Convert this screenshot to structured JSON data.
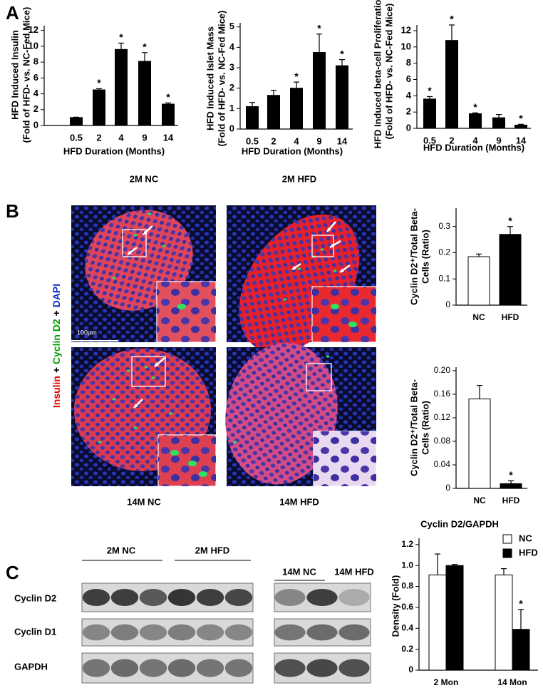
{
  "chart_data": [
    {
      "type": "bar",
      "y_label": [
        "HFD Induced Insulin",
        "(Fold of HFD- vs. NC-Fed Mice)"
      ],
      "x_label": "HFD Duration (Months)",
      "categories": [
        "0.5",
        "2",
        "4",
        "9",
        "14"
      ],
      "series": [
        {
          "color": "#000000",
          "values": [
            1.0,
            4.5,
            9.6,
            8.1,
            2.7
          ],
          "errors": [
            0.05,
            0.15,
            0.8,
            1.1,
            0.15
          ]
        }
      ],
      "ylim": [
        0,
        12.6
      ],
      "yticks": [
        0,
        2,
        4,
        6,
        8,
        10,
        12
      ],
      "annotations": [
        {
          "category": "2",
          "text": "*"
        },
        {
          "category": "4",
          "text": "*"
        },
        {
          "category": "9",
          "text": "*"
        },
        {
          "category": "14",
          "text": "*"
        }
      ]
    },
    {
      "type": "bar",
      "y_label": [
        "HFD Induced Islet Mass",
        "(Fold of HFD- vs. NC-Fed Mice)"
      ],
      "x_label": "HFD Duration (Months)",
      "categories": [
        "0.5",
        "2",
        "4",
        "9",
        "14"
      ],
      "series": [
        {
          "color": "#000000",
          "values": [
            1.1,
            1.65,
            2.0,
            3.75,
            3.1
          ],
          "errors": [
            0.2,
            0.25,
            0.3,
            0.9,
            0.3
          ]
        }
      ],
      "ylim": [
        0,
        5.2
      ],
      "yticks": [
        0,
        1,
        2,
        3,
        4,
        5
      ],
      "annotations": [
        {
          "category": "4",
          "text": "*"
        },
        {
          "category": "9",
          "text": "*"
        },
        {
          "category": "14",
          "text": "*"
        }
      ]
    },
    {
      "type": "bar",
      "y_label": [
        "HFD Induced beta-cell Proliferation",
        "(Fold of HFD- vs. NC-Fed Mice)"
      ],
      "x_label": "HFD Duration (Months)",
      "categories": [
        "0.5",
        "2",
        "4",
        "9",
        "14"
      ],
      "series": [
        {
          "color": "#000000",
          "values": [
            3.6,
            10.8,
            1.8,
            1.3,
            0.4
          ],
          "errors": [
            0.3,
            1.9,
            0.1,
            0.4,
            0.1
          ]
        }
      ],
      "ylim": [
        0,
        12.7
      ],
      "yticks": [
        0,
        2,
        4,
        6,
        8,
        10,
        12
      ],
      "annotations": [
        {
          "category": "0.5",
          "text": "*"
        },
        {
          "category": "2",
          "text": "*"
        },
        {
          "category": "4",
          "text": "*"
        },
        {
          "category": "14",
          "text": "*"
        }
      ]
    },
    {
      "type": "bar",
      "y_label": [
        "Cyclin D2⁺/Total Beta-",
        "Cells (Ratio)"
      ],
      "categories": [
        "NC",
        "HFD"
      ],
      "series": [
        {
          "colors": [
            "#ffffff",
            "#000000"
          ],
          "values": [
            0.185,
            0.27
          ],
          "errors": [
            0.01,
            0.03
          ]
        }
      ],
      "ylim": [
        0,
        0.37
      ],
      "yticks": [
        0,
        0.1,
        0.2,
        0.3
      ],
      "annotations": [
        {
          "category": "HFD",
          "text": "*"
        }
      ]
    },
    {
      "type": "bar",
      "y_label": [
        "Cyclin D2⁺/Total Beta-",
        "Cells (Ratio)"
      ],
      "categories": [
        "NC",
        "HFD"
      ],
      "series": [
        {
          "colors": [
            "#ffffff",
            "#000000"
          ],
          "values": [
            0.152,
            0.008
          ],
          "errors": [
            0.023,
            0.005
          ]
        }
      ],
      "ylim": [
        0,
        0.206
      ],
      "yticks": [
        0,
        0.04,
        0.08,
        0.12,
        0.16,
        {
          "value": 0.2,
          "label": "0.20"
        }
      ],
      "annotations": [
        {
          "category": "HFD",
          "text": "*"
        }
      ]
    },
    {
      "type": "bar",
      "title": "Cyclin D2/GAPDH",
      "y_label": [
        "Density (Fold)"
      ],
      "categories": [
        "2 Mon",
        "14 Mon"
      ],
      "series": [
        {
          "name": "NC",
          "color": "#ffffff",
          "values": [
            0.91,
            0.91
          ],
          "errors": [
            0.2,
            0.06
          ]
        },
        {
          "name": "HFD",
          "color": "#000000",
          "values": [
            1.0,
            0.39
          ],
          "errors": [
            0.01,
            0.19
          ]
        }
      ],
      "ylim": [
        0,
        1.26
      ],
      "yticks": [
        0,
        0.2,
        0.4,
        0.6,
        0.8,
        {
          "value": 1.0,
          "label": "1.0"
        },
        1.2
      ],
      "legend": "top-right",
      "annotations": [
        {
          "series": "HFD",
          "category": "14 Mon",
          "text": "*"
        }
      ]
    }
  ],
  "figure": {
    "panel_labels": [
      "A",
      "B",
      "C"
    ],
    "images": [
      "2M NC",
      "2M HFD",
      "14M NC",
      "14M HFD"
    ],
    "scale_bar": "100µm",
    "stain_label": [
      "Insulin",
      "+",
      "Cyclin D2",
      "+",
      "DAPI"
    ],
    "blot": {
      "lane_groups": [
        "2M NC",
        "2M HFD",
        "14M NC",
        "14M HFD"
      ],
      "rows": [
        "Cyclin D2",
        "Cyclin D1",
        "GAPDH"
      ]
    }
  }
}
